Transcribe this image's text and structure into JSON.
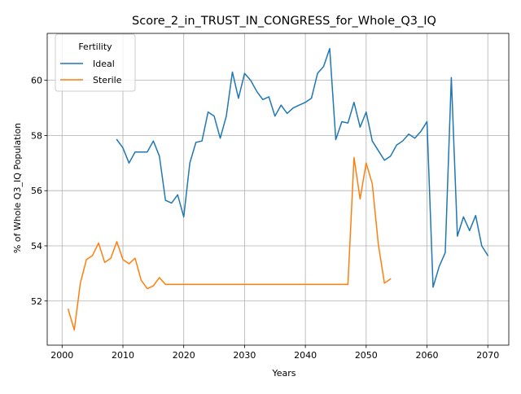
{
  "chart_data": {
    "type": "line",
    "title": "Score_2_in_TRUST_IN_CONGRESS_for_Whole_Q3_IQ",
    "xlabel": "Years",
    "ylabel": "% of Whole Q3_IQ Population",
    "xlim": [
      1997.55,
      2073.45
    ],
    "ylim": [
      50.4,
      61.7
    ],
    "xticks": [
      2000,
      2010,
      2020,
      2030,
      2040,
      2050,
      2060,
      2070
    ],
    "yticks": [
      52,
      54,
      56,
      58,
      60
    ],
    "grid": true,
    "legend": {
      "title": "Fertility",
      "placement": "top-left"
    },
    "series": [
      {
        "name": "Ideal",
        "color": "#1f77b4",
        "x": [
          2009,
          2010,
          2011,
          2012,
          2013,
          2014,
          2015,
          2016,
          2017,
          2018,
          2019,
          2020,
          2021,
          2022,
          2023,
          2024,
          2025,
          2026,
          2027,
          2028,
          2029,
          2030,
          2031,
          2032,
          2033,
          2034,
          2035,
          2036,
          2037,
          2038,
          2039,
          2040,
          2041,
          2042,
          2043,
          2044,
          2045,
          2046,
          2047,
          2048,
          2049,
          2050,
          2051,
          2052,
          2053,
          2054,
          2055,
          2056,
          2057,
          2058,
          2059,
          2060,
          2061,
          2062,
          2063,
          2064,
          2065,
          2066,
          2067,
          2068,
          2069,
          2070
        ],
        "values": [
          57.85,
          57.55,
          57.0,
          57.4,
          57.4,
          57.4,
          57.8,
          57.25,
          55.65,
          55.55,
          55.85,
          55.05,
          57.0,
          57.75,
          57.8,
          58.85,
          58.7,
          57.9,
          58.7,
          60.3,
          59.35,
          60.25,
          60.0,
          59.6,
          59.3,
          59.4,
          58.7,
          59.1,
          58.8,
          59.0,
          59.1,
          59.2,
          59.35,
          60.25,
          60.5,
          61.15,
          57.85,
          58.5,
          58.45,
          59.2,
          58.3,
          58.85,
          57.8,
          57.45,
          57.1,
          57.25,
          57.65,
          57.8,
          58.05,
          57.9,
          58.15,
          58.5,
          52.5,
          53.25,
          53.75,
          60.1,
          54.35,
          55.05,
          54.55,
          55.1,
          54.0,
          53.65
        ]
      },
      {
        "name": "Sterile",
        "color": "#ff7f0e",
        "x": [
          2001,
          2002,
          2003,
          2004,
          2005,
          2006,
          2007,
          2008,
          2009,
          2010,
          2011,
          2012,
          2013,
          2014,
          2015,
          2016,
          2017,
          2018,
          2019,
          2020,
          2021,
          2022,
          2023,
          2024,
          2025,
          2026,
          2027,
          2028,
          2029,
          2030,
          2031,
          2032,
          2033,
          2034,
          2035,
          2036,
          2037,
          2038,
          2039,
          2040,
          2041,
          2042,
          2043,
          2044,
          2045,
          2046,
          2047,
          2048,
          2049,
          2050,
          2051,
          2052,
          2053,
          2054
        ],
        "values": [
          51.7,
          50.95,
          52.65,
          53.5,
          53.65,
          54.1,
          53.4,
          53.55,
          54.15,
          53.5,
          53.35,
          53.55,
          52.75,
          52.45,
          52.55,
          52.85,
          52.6,
          52.6,
          52.6,
          52.6,
          52.6,
          52.6,
          52.6,
          52.6,
          52.6,
          52.6,
          52.6,
          52.6,
          52.6,
          52.6,
          52.6,
          52.6,
          52.6,
          52.6,
          52.6,
          52.6,
          52.6,
          52.6,
          52.6,
          52.6,
          52.6,
          52.6,
          52.6,
          52.6,
          52.6,
          52.6,
          52.6,
          57.2,
          55.7,
          57.0,
          56.25,
          54.05,
          52.65,
          52.8
        ]
      }
    ]
  }
}
